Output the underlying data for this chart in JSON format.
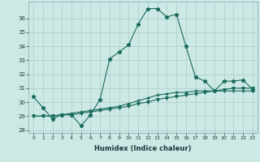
{
  "title": "",
  "xlabel": "Humidex (Indice chaleur)",
  "background_color": "#cce9e5",
  "grid_color": "#aacccc",
  "line_color": "#1a6b5a",
  "x_values": [
    0,
    1,
    2,
    3,
    4,
    5,
    6,
    7,
    8,
    9,
    10,
    11,
    12,
    13,
    14,
    15,
    16,
    17,
    18,
    19,
    20,
    21,
    22,
    23
  ],
  "line1_y": [
    30.4,
    29.6,
    28.8,
    29.1,
    29.1,
    28.3,
    29.1,
    30.2,
    33.1,
    33.6,
    34.1,
    35.6,
    36.7,
    36.7,
    36.1,
    36.3,
    34.0,
    31.8,
    31.5,
    30.8,
    31.5,
    31.5,
    31.6,
    30.9
  ],
  "line2_y": [
    29.0,
    29.0,
    29.0,
    29.1,
    29.2,
    29.3,
    29.4,
    29.5,
    29.6,
    29.7,
    29.9,
    30.1,
    30.3,
    30.5,
    30.6,
    30.7,
    30.7,
    30.8,
    30.8,
    30.8,
    30.8,
    30.8,
    30.8,
    30.8
  ],
  "line3_y": [
    29.0,
    29.0,
    29.0,
    29.1,
    29.1,
    29.2,
    29.3,
    29.4,
    29.5,
    29.6,
    29.7,
    29.9,
    30.0,
    30.2,
    30.3,
    30.4,
    30.5,
    30.6,
    30.7,
    30.8,
    30.9,
    31.0,
    31.0,
    31.0
  ],
  "ylim": [
    27.8,
    37.2
  ],
  "xlim": [
    -0.5,
    23.5
  ],
  "yticks": [
    28,
    29,
    30,
    31,
    32,
    33,
    34,
    35,
    36
  ],
  "xticks": [
    0,
    1,
    2,
    3,
    4,
    5,
    6,
    7,
    8,
    9,
    10,
    11,
    12,
    13,
    14,
    15,
    16,
    17,
    18,
    19,
    20,
    21,
    22,
    23
  ],
  "xlabel_fontsize": 6.0,
  "tick_fontsize": 4.5,
  "ytick_fontsize": 5.0
}
